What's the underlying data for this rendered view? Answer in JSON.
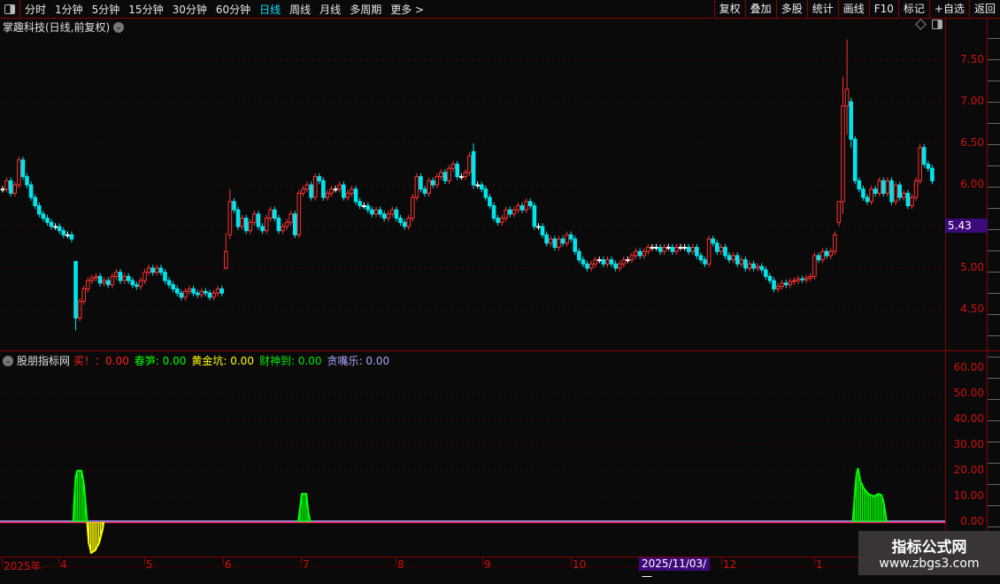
{
  "toolbar": {
    "periods": [
      "分时",
      "1分钟",
      "5分钟",
      "15分钟",
      "30分钟",
      "60分钟",
      "日线",
      "周线",
      "月线",
      "多周期",
      "更多 >"
    ],
    "active_period": "日线",
    "right_buttons": [
      "复权",
      "叠加",
      "多股",
      "统计",
      "画线",
      "F10",
      "标记",
      "+自选",
      "返回"
    ]
  },
  "main": {
    "title": "掌趣科技(日线,前复权)",
    "last_price": "5.43",
    "y_ticks": [
      "7.50",
      "7.00",
      "6.50",
      "6.00",
      "5.00",
      "4.50"
    ]
  },
  "indicator": {
    "name": "股朋指标网",
    "fields": [
      {
        "label": "买！",
        "value": "：0.00",
        "color": "#ff2020"
      },
      {
        "label": "春笋",
        "value": ": 0.00",
        "color": "#00ff00"
      },
      {
        "label": "黄金坑",
        "value": ": 0.00",
        "color": "#ffff00"
      },
      {
        "label": "财神到",
        "value": ": 0.00",
        "color": "#00ee00"
      },
      {
        "label": "贪嘴乐",
        "value": ": 0.00",
        "color": "#a8a8ff"
      }
    ],
    "y_ticks": [
      "60.00",
      "50.00",
      "40.00",
      "30.00",
      "20.00",
      "10.00",
      "0.00"
    ]
  },
  "x_axis": {
    "labels": [
      "2025年",
      "4",
      "5",
      "6",
      "7",
      "8",
      "9",
      "10",
      "12",
      "1"
    ],
    "cursor_date": "2025/11/03/一"
  },
  "watermark": {
    "line1": "指标公式网",
    "line2": "www.zbgs3.com"
  },
  "colors": {
    "up": "#ff3232",
    "down": "#00e5ee",
    "flat": "#ffffff",
    "grid": "#8b0000",
    "spring": "#00ff00",
    "gold": "#ffff00",
    "zero_line": "#ff2060",
    "zero_line2": "#a8a8ff"
  },
  "chart_data": [
    {
      "type": "candlestick",
      "title": "掌趣科技(日线,前复权)",
      "ylim": [
        4.2,
        7.8
      ],
      "note_format": "number = close (open = previous close); array = [open, high, low, close]",
      "bars": [
        5.95,
        6.05,
        5.9,
        6.0,
        6.3,
        6.1,
        6.0,
        5.85,
        5.75,
        5.65,
        5.6,
        5.55,
        5.5,
        5.5,
        5.45,
        5.4,
        5.4,
        5.35,
        [
          5.08,
          5.08,
          4.25,
          4.4
        ],
        4.6,
        4.75,
        4.85,
        4.88,
        4.9,
        4.82,
        4.85,
        4.8,
        4.9,
        4.95,
        4.85,
        4.9,
        4.85,
        4.8,
        4.78,
        4.85,
        4.95,
        5.0,
        4.95,
        5.0,
        4.95,
        4.85,
        4.8,
        4.75,
        4.7,
        4.65,
        4.72,
        4.75,
        4.7,
        4.68,
        4.72,
        4.7,
        4.65,
        4.7,
        4.75,
        4.7,
        [
          5.0,
          5.42,
          4.98,
          5.2
        ],
        [
          5.4,
          5.95,
          5.35,
          5.8
        ],
        5.7,
        5.5,
        5.6,
        5.45,
        5.55,
        5.65,
        5.5,
        5.45,
        5.6,
        5.7,
        5.6,
        5.45,
        5.5,
        5.55,
        5.65,
        5.4,
        5.9,
        5.95,
        6.0,
        5.85,
        6.1,
        6.05,
        5.85,
        5.9,
        5.95,
        5.95,
        6.0,
        5.85,
        5.9,
        5.95,
        5.8,
        5.75,
        5.75,
        5.7,
        5.65,
        5.7,
        5.65,
        5.6,
        5.65,
        5.7,
        5.6,
        5.55,
        5.5,
        5.6,
        5.85,
        6.1,
        5.95,
        5.9,
        6.05,
        6.0,
        6.1,
        6.15,
        6.05,
        6.2,
        6.25,
        6.1,
        6.1,
        6.15,
        6.35,
        [
          6.4,
          6.5,
          5.95,
          6.0
        ],
        6.0,
        5.95,
        5.85,
        5.75,
        5.6,
        5.55,
        5.6,
        5.7,
        5.65,
        5.7,
        5.75,
        5.7,
        5.8,
        5.75,
        5.5,
        5.5,
        5.4,
        5.3,
        5.35,
        5.25,
        5.35,
        5.3,
        5.4,
        5.35,
        5.2,
        5.1,
        5.05,
        5.0,
        5.05,
        5.1,
        5.1,
        5.05,
        5.1,
        5.05,
        5.0,
        5.05,
        5.1,
        5.1,
        5.15,
        5.2,
        5.15,
        5.2,
        5.25,
        5.25,
        5.25,
        5.2,
        5.25,
        5.25,
        5.2,
        5.25,
        5.25,
        5.25,
        5.2,
        5.25,
        5.15,
        5.1,
        5.05,
        5.35,
        5.3,
        5.2,
        5.25,
        5.15,
        5.1,
        5.15,
        5.05,
        5.1,
        5.0,
        5.05,
        5.0,
        5.02,
        4.98,
        4.9,
        4.85,
        4.75,
        4.78,
        4.82,
        4.8,
        4.84,
        4.85,
        4.87,
        4.86,
        4.88,
        4.9,
        5.15,
        5.1,
        5.2,
        5.15,
        5.2,
        5.4,
        [
          5.55,
          5.8,
          5.5,
          5.8
        ],
        [
          5.8,
          7.3,
          5.65,
          6.95
        ],
        [
          6.95,
          7.75,
          6.6,
          7.15
        ],
        [
          7.0,
          7.05,
          6.45,
          6.55
        ],
        6.05,
        5.95,
        5.85,
        5.8,
        5.95,
        5.9,
        6.05,
        5.9,
        6.05,
        5.8,
        6.0,
        5.85,
        5.9,
        5.75,
        5.85,
        6.05,
        6.45,
        6.25,
        6.2,
        6.05
      ]
    },
    {
      "type": "area",
      "ylim": [
        -15,
        65
      ],
      "x_unit": "bar index",
      "series": [
        {
          "name": "春笋",
          "color": "#00ff00",
          "points": [
            [
              17.4,
              0
            ],
            [
              17.6,
              8
            ],
            [
              18.0,
              18
            ],
            [
              18.4,
              20
            ],
            [
              19.4,
              20
            ],
            [
              20.0,
              15
            ],
            [
              20.4,
              8
            ],
            [
              20.8,
              0
            ]
          ]
        },
        {
          "name": "黄金坑",
          "color": "#ffff00",
          "points": [
            [
              20.8,
              0
            ],
            [
              21.2,
              -8
            ],
            [
              21.8,
              -12
            ],
            [
              22.8,
              -11
            ],
            [
              23.8,
              -8
            ],
            [
              24.6,
              -3
            ],
            [
              24.9,
              0
            ]
          ]
        },
        {
          "name": "春笋",
          "color": "#00ff00",
          "points": [
            [
              72.8,
              0
            ],
            [
              73.3,
              6
            ],
            [
              73.7,
              11
            ],
            [
              74.8,
              11
            ],
            [
              75.3,
              4
            ],
            [
              75.8,
              0
            ]
          ]
        },
        {
          "name": "春笋",
          "color": "#00ff00",
          "points": [
            [
              209.4,
              0
            ],
            [
              209.9,
              10
            ],
            [
              210.3,
              18
            ],
            [
              210.7,
              21
            ],
            [
              211.3,
              16
            ],
            [
              212.2,
              13
            ],
            [
              213.2,
              11
            ],
            [
              214.7,
              10
            ],
            [
              215.7,
              11
            ],
            [
              216.5,
              10.5
            ],
            [
              217.0,
              8
            ],
            [
              217.5,
              3
            ],
            [
              217.8,
              0
            ]
          ]
        }
      ]
    }
  ]
}
